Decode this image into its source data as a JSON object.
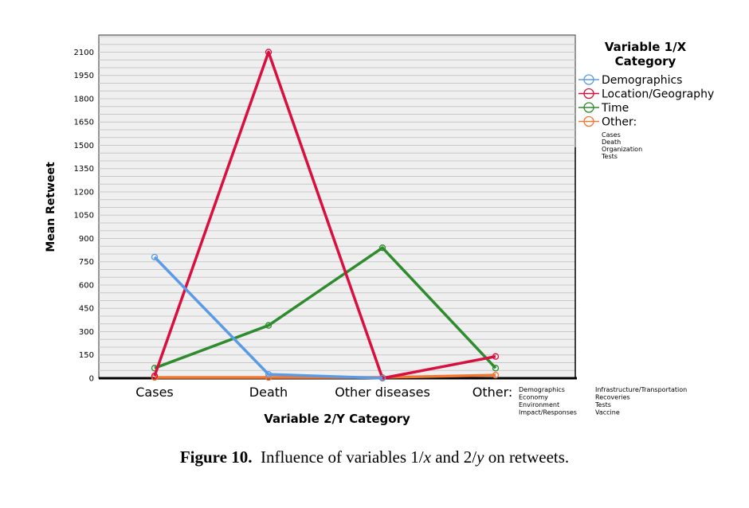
{
  "chart_data": {
    "type": "line",
    "xlabel": "Variable 2/Y Category",
    "ylabel": "Mean Retweet",
    "categories": [
      "Cases",
      "Death",
      "Other diseases",
      "Other:"
    ],
    "other_x_note": [
      "Demographics",
      "Economy",
      "Environment",
      "Impact/Responses",
      "Infrastructure/Transportation",
      "Recoveries",
      "Tests",
      "Vaccine"
    ],
    "yticks": [
      0,
      150,
      300,
      450,
      600,
      750,
      900,
      1050,
      1200,
      1350,
      1500,
      1650,
      1800,
      1950,
      2100
    ],
    "ylim": [
      0,
      2210
    ],
    "grid": true,
    "legend": {
      "title": "Variable 1/X Category",
      "placement": "right",
      "other_note": [
        "Cases",
        "Death",
        "Organization",
        "Tests"
      ]
    },
    "series": [
      {
        "name": "Demographics",
        "color": "#5b9be6",
        "values": [
          780,
          25,
          0,
          null
        ]
      },
      {
        "name": "Location/Geography",
        "color": "#d9103f",
        "values": [
          15,
          2100,
          0,
          140
        ]
      },
      {
        "name": "Time",
        "color": "#2e8b2e",
        "values": [
          65,
          340,
          840,
          65
        ]
      },
      {
        "name": "Other:",
        "color": "#f07830",
        "values": [
          5,
          5,
          5,
          20
        ]
      }
    ]
  },
  "caption": {
    "label": "Figure 10.",
    "text_pre": "Influence of variables 1/",
    "x": "x",
    "mid": " and 2/",
    "y": "y",
    "post": " on retweets."
  }
}
